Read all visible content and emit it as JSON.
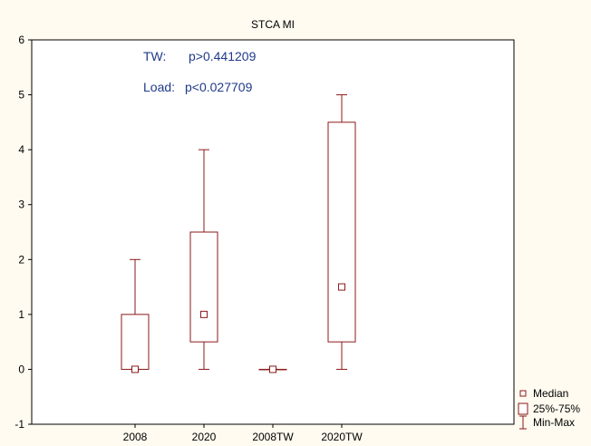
{
  "chart_data": {
    "type": "box",
    "title": "STCA MI",
    "xlabel": "",
    "ylabel": "",
    "ylim": [
      -1,
      6
    ],
    "yticks": [
      -1,
      0,
      1,
      2,
      3,
      4,
      5,
      6
    ],
    "categories": [
      "2008",
      "2020",
      "2008TW",
      "2020TW"
    ],
    "boxes": [
      {
        "category": "2008",
        "min": 0,
        "q1": 0,
        "median": 0,
        "q3": 1,
        "max": 2
      },
      {
        "category": "2020",
        "min": 0,
        "q1": 0.5,
        "median": 1,
        "q3": 2.5,
        "max": 4
      },
      {
        "category": "2008TW",
        "min": 0,
        "q1": 0,
        "median": 0,
        "q3": 0,
        "max": 0
      },
      {
        "category": "2020TW",
        "min": 0,
        "q1": 0.5,
        "median": 1.5,
        "q3": 4.5,
        "max": 5
      }
    ],
    "annotations": [
      {
        "label": "TW:",
        "value": "p>0.441209"
      },
      {
        "label": "Load:",
        "value": "p<0.027709"
      }
    ],
    "legend": {
      "placement": "bottom-right",
      "entries": [
        "Median",
        "25%-75%",
        "Min-Max"
      ]
    },
    "grid": false,
    "colors": {
      "series": "#8b1a1a",
      "annotation": "#1f3a8a",
      "background": "#fffbf0",
      "plot_background": "#ffffff"
    }
  }
}
